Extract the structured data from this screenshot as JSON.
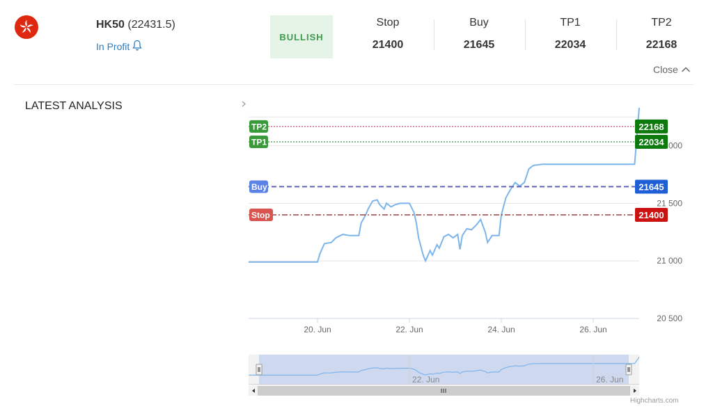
{
  "header": {
    "flag_icon": "hong-kong-flag-icon",
    "symbol": "HK50",
    "price": "(22431.5)",
    "status": "In Profit",
    "status_icon": "bell-icon",
    "badge": "BULLISH",
    "metrics": [
      {
        "label": "Stop",
        "value": "21400"
      },
      {
        "label": "Buy",
        "value": "21645"
      },
      {
        "label": "TP1",
        "value": "22034"
      },
      {
        "label": "TP2",
        "value": "22168"
      }
    ],
    "close_label": "Close",
    "close_icon": "chevron-up-icon"
  },
  "section_title": "LATEST ANALYSIS",
  "credits": "Highcharts.com",
  "colors": {
    "line": "#7cb5ec",
    "tp": "#3a9a3a",
    "tp_dark": "#0d7a0d",
    "buy": "#5b82e6",
    "buy_dark": "#1e5fd6",
    "stop": "#d9534f",
    "stop_dark": "#cc1111",
    "badge_bg": "#e6f4e8",
    "badge_text": "#3c9a4a"
  },
  "chart_data": {
    "type": "line",
    "title": "",
    "xlabel": "",
    "ylabel": "",
    "x_ticks": [
      "20. Jun",
      "22. Jun",
      "24. Jun",
      "26. Jun"
    ],
    "y_ticks": [
      "20 500",
      "21 000",
      "21 500",
      "22 000"
    ],
    "ylim": [
      20500,
      22300
    ],
    "xlim": [
      18.5,
      27.0
    ],
    "series": [
      {
        "points": [
          [
            18.5,
            20990
          ],
          [
            19.5,
            20990
          ],
          [
            20.0,
            20990
          ],
          [
            20.05,
            21060
          ],
          [
            20.15,
            21150
          ],
          [
            20.3,
            21160
          ],
          [
            20.4,
            21200
          ],
          [
            20.55,
            21230
          ],
          [
            20.7,
            21220
          ],
          [
            20.9,
            21220
          ],
          [
            20.95,
            21330
          ],
          [
            21.05,
            21400
          ],
          [
            21.1,
            21450
          ],
          [
            21.2,
            21520
          ],
          [
            21.3,
            21530
          ],
          [
            21.35,
            21490
          ],
          [
            21.45,
            21450
          ],
          [
            21.5,
            21500
          ],
          [
            21.6,
            21470
          ],
          [
            21.7,
            21490
          ],
          [
            21.8,
            21500
          ],
          [
            22.0,
            21500
          ],
          [
            22.1,
            21420
          ],
          [
            22.15,
            21330
          ],
          [
            22.2,
            21200
          ],
          [
            22.3,
            21050
          ],
          [
            22.35,
            21000
          ],
          [
            22.45,
            21090
          ],
          [
            22.5,
            21050
          ],
          [
            22.6,
            21140
          ],
          [
            22.65,
            21110
          ],
          [
            22.75,
            21210
          ],
          [
            22.85,
            21230
          ],
          [
            22.95,
            21200
          ],
          [
            23.05,
            21230
          ],
          [
            23.1,
            21100
          ],
          [
            23.15,
            21220
          ],
          [
            23.25,
            21280
          ],
          [
            23.35,
            21270
          ],
          [
            23.45,
            21310
          ],
          [
            23.55,
            21360
          ],
          [
            23.65,
            21250
          ],
          [
            23.7,
            21160
          ],
          [
            23.8,
            21220
          ],
          [
            23.95,
            21220
          ],
          [
            24.0,
            21400
          ],
          [
            24.1,
            21550
          ],
          [
            24.2,
            21620
          ],
          [
            24.3,
            21680
          ],
          [
            24.4,
            21650
          ],
          [
            24.5,
            21680
          ],
          [
            24.6,
            21800
          ],
          [
            24.7,
            21830
          ],
          [
            24.9,
            21840
          ],
          [
            26.3,
            21840
          ],
          [
            26.9,
            21840
          ],
          [
            26.95,
            22080
          ],
          [
            27.0,
            22330
          ]
        ]
      }
    ],
    "levels": [
      {
        "name": "TP2",
        "value": 22168,
        "label": "22168"
      },
      {
        "name": "TP1",
        "value": 22034,
        "label": "22034"
      },
      {
        "name": "Buy",
        "value": 21645,
        "label": "21645"
      },
      {
        "name": "Stop",
        "value": 21400,
        "label": "21400"
      }
    ],
    "navigator": {
      "x_ticks": [
        "22. Jun",
        "26. Jun"
      ]
    }
  }
}
